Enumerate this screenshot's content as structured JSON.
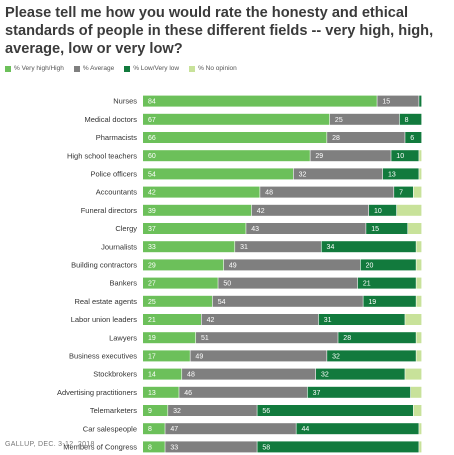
{
  "title": "Please tell me how you would rate the honesty and ethical standards of people in these different fields -- very high, high, average, low or very low?",
  "footer": "GALLUP, DEC. 3-12, 2018",
  "colors": {
    "high": "#6cc05a",
    "average": "#7f7f7f",
    "low": "#127a3d",
    "noopinion": "#c8e29a"
  },
  "chart_data": {
    "type": "bar",
    "orientation": "horizontal",
    "stacked": true,
    "categories": [
      "Nurses",
      "Medical doctors",
      "Pharmacists",
      "High school teachers",
      "Police officers",
      "Accountants",
      "Funeral directors",
      "Clergy",
      "Journalists",
      "Building contractors",
      "Bankers",
      "Real estate agents",
      "Labor union leaders",
      "Lawyers",
      "Business executives",
      "Stockbrokers",
      "Advertising practitioners",
      "Telemarketers",
      "Car salespeople",
      "Members of Congress"
    ],
    "series": [
      {
        "name": "% Very high/High",
        "key": "high",
        "values": [
          84,
          67,
          66,
          60,
          54,
          42,
          39,
          37,
          33,
          29,
          27,
          25,
          21,
          19,
          17,
          14,
          13,
          9,
          8,
          8
        ]
      },
      {
        "name": "% Average",
        "key": "average",
        "values": [
          15,
          25,
          28,
          29,
          32,
          48,
          42,
          43,
          31,
          49,
          50,
          54,
          42,
          51,
          49,
          48,
          46,
          32,
          47,
          33
        ]
      },
      {
        "name": "% Low/Very low",
        "key": "low",
        "values": [
          1,
          8,
          6,
          10,
          13,
          7,
          10,
          15,
          34,
          20,
          21,
          19,
          31,
          28,
          32,
          32,
          37,
          56,
          44,
          58
        ]
      },
      {
        "name": "% No opinion",
        "key": "noopinion",
        "values": [
          0,
          0,
          0,
          1,
          1,
          3,
          9,
          5,
          2,
          2,
          2,
          2,
          6,
          2,
          2,
          6,
          4,
          3,
          1,
          1
        ]
      }
    ],
    "label_min": 5,
    "xlim": [
      0,
      100
    ],
    "legend_position": "top-left",
    "grid": false
  }
}
